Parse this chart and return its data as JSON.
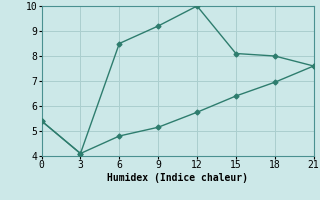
{
  "line1_x": [
    0,
    3,
    6,
    9,
    12,
    15,
    18,
    21
  ],
  "line1_y": [
    5.4,
    4.1,
    8.5,
    9.2,
    10.0,
    8.1,
    8.0,
    7.6
  ],
  "line2_x": [
    0,
    3,
    6,
    9,
    12,
    15,
    18,
    21
  ],
  "line2_y": [
    5.4,
    4.1,
    4.8,
    5.15,
    5.75,
    6.4,
    6.95,
    7.6
  ],
  "line_color": "#2e7d6e",
  "bg_color": "#cce8e8",
  "grid_color": "#aacece",
  "xlabel": "Humidex (Indice chaleur)",
  "xlim": [
    0,
    21
  ],
  "ylim": [
    4,
    10
  ],
  "xticks": [
    0,
    3,
    6,
    9,
    12,
    15,
    18,
    21
  ],
  "yticks": [
    4,
    5,
    6,
    7,
    8,
    9,
    10
  ],
  "xlabel_fontsize": 7,
  "tick_fontsize": 7,
  "marker": "D",
  "marker_size": 2.5,
  "linewidth": 1.0
}
